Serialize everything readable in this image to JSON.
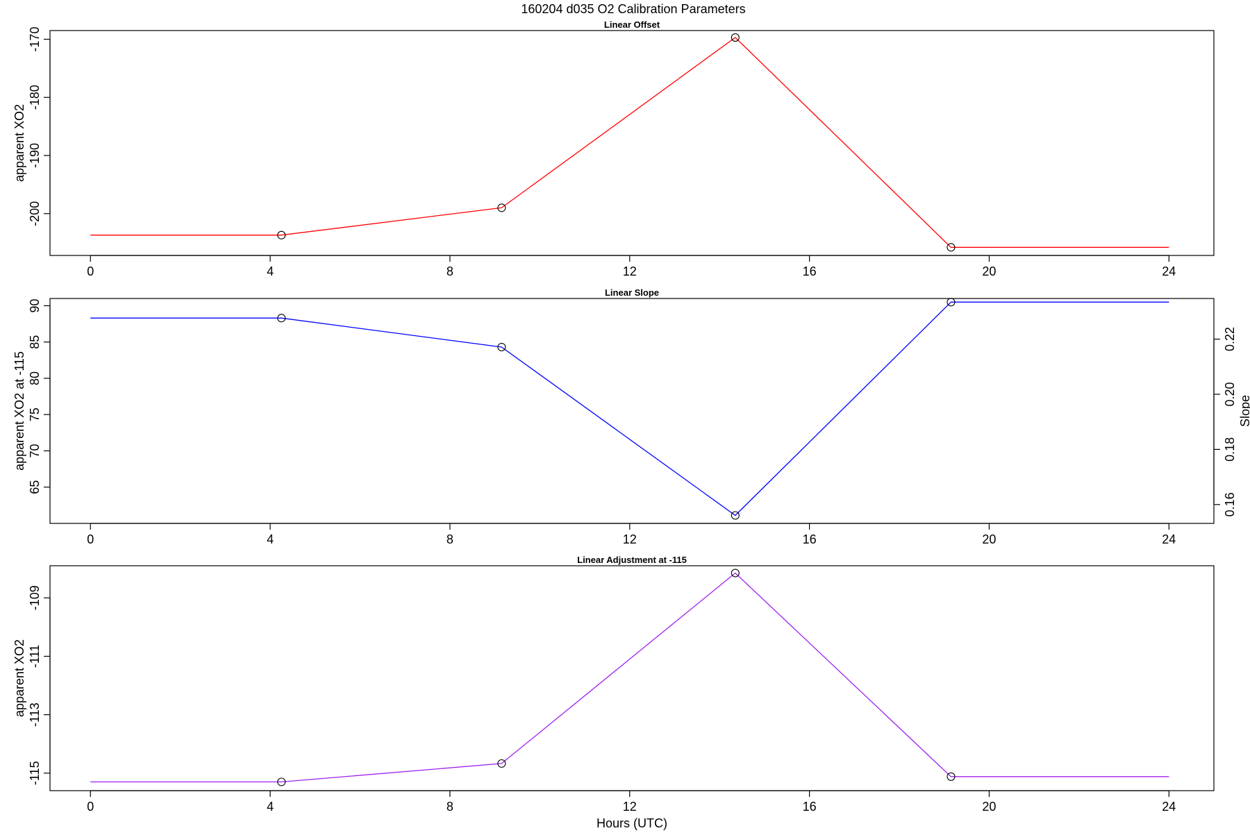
{
  "figure": {
    "title": "160204   d035   O2 Calibration Parameters",
    "xlabel": "Hours (UTC)"
  },
  "chart_data": [
    {
      "type": "line",
      "title": "Linear Offset",
      "xlabel": "",
      "ylabel": "apparent XO2",
      "color": "#ff0000",
      "xlim": [
        -0.9,
        25.0
      ],
      "ylim": [
        -207.2,
        -168.5
      ],
      "xticks": [
        0,
        4,
        8,
        12,
        16,
        20,
        24
      ],
      "yticks": [
        -200,
        -190,
        -180,
        -170
      ],
      "line": {
        "x": [
          0,
          4.25,
          9.15,
          14.35,
          19.15,
          24
        ],
        "y": [
          -203.7,
          -203.7,
          -199.0,
          -169.7,
          -205.8,
          -205.8
        ]
      },
      "points": {
        "x": [
          4.25,
          9.15,
          14.35,
          19.15
        ],
        "y": [
          -203.7,
          -199.0,
          -169.7,
          -205.8
        ]
      }
    },
    {
      "type": "line",
      "title": "Linear Slope",
      "xlabel": "",
      "ylabel": "apparent XO2 at -115",
      "ylabel_right": "Slope",
      "color": "#0000ff",
      "xlim": [
        -0.9,
        25.0
      ],
      "ylim": [
        60.0,
        91.0
      ],
      "xticks": [
        0,
        4,
        8,
        12,
        16,
        20,
        24
      ],
      "yticks": [
        65,
        70,
        75,
        80,
        85,
        90
      ],
      "right_axis": {
        "ticks": [
          "0.16",
          "0.18",
          "0.20",
          "0.22"
        ],
        "tick_positions_left_units": [
          62.6,
          70.2,
          77.8,
          85.4
        ]
      },
      "line": {
        "x": [
          0,
          4.25,
          9.15,
          14.35,
          19.15,
          24
        ],
        "y": [
          88.3,
          88.3,
          84.3,
          61.1,
          90.5,
          90.5
        ]
      },
      "points": {
        "x": [
          4.25,
          9.15,
          14.35,
          19.15
        ],
        "y": [
          88.3,
          84.3,
          61.1,
          90.5
        ]
      }
    },
    {
      "type": "line",
      "title": "Linear Adjustment at -115",
      "xlabel": "Hours (UTC)",
      "ylabel": "apparent XO2",
      "color": "#a020f0",
      "xlim": [
        -0.9,
        25.0
      ],
      "ylim": [
        -115.6,
        -107.9
      ],
      "xticks": [
        0,
        4,
        8,
        12,
        16,
        20,
        24
      ],
      "yticks": [
        -115,
        -113,
        -111,
        -109
      ],
      "line": {
        "x": [
          0,
          4.25,
          9.15,
          14.35,
          19.15,
          24
        ],
        "y": [
          -115.3,
          -115.3,
          -114.67,
          -108.15,
          -115.12,
          -115.12
        ]
      },
      "points": {
        "x": [
          4.25,
          9.15,
          14.35,
          19.15
        ],
        "y": [
          -115.3,
          -114.67,
          -108.15,
          -115.12
        ]
      }
    }
  ]
}
